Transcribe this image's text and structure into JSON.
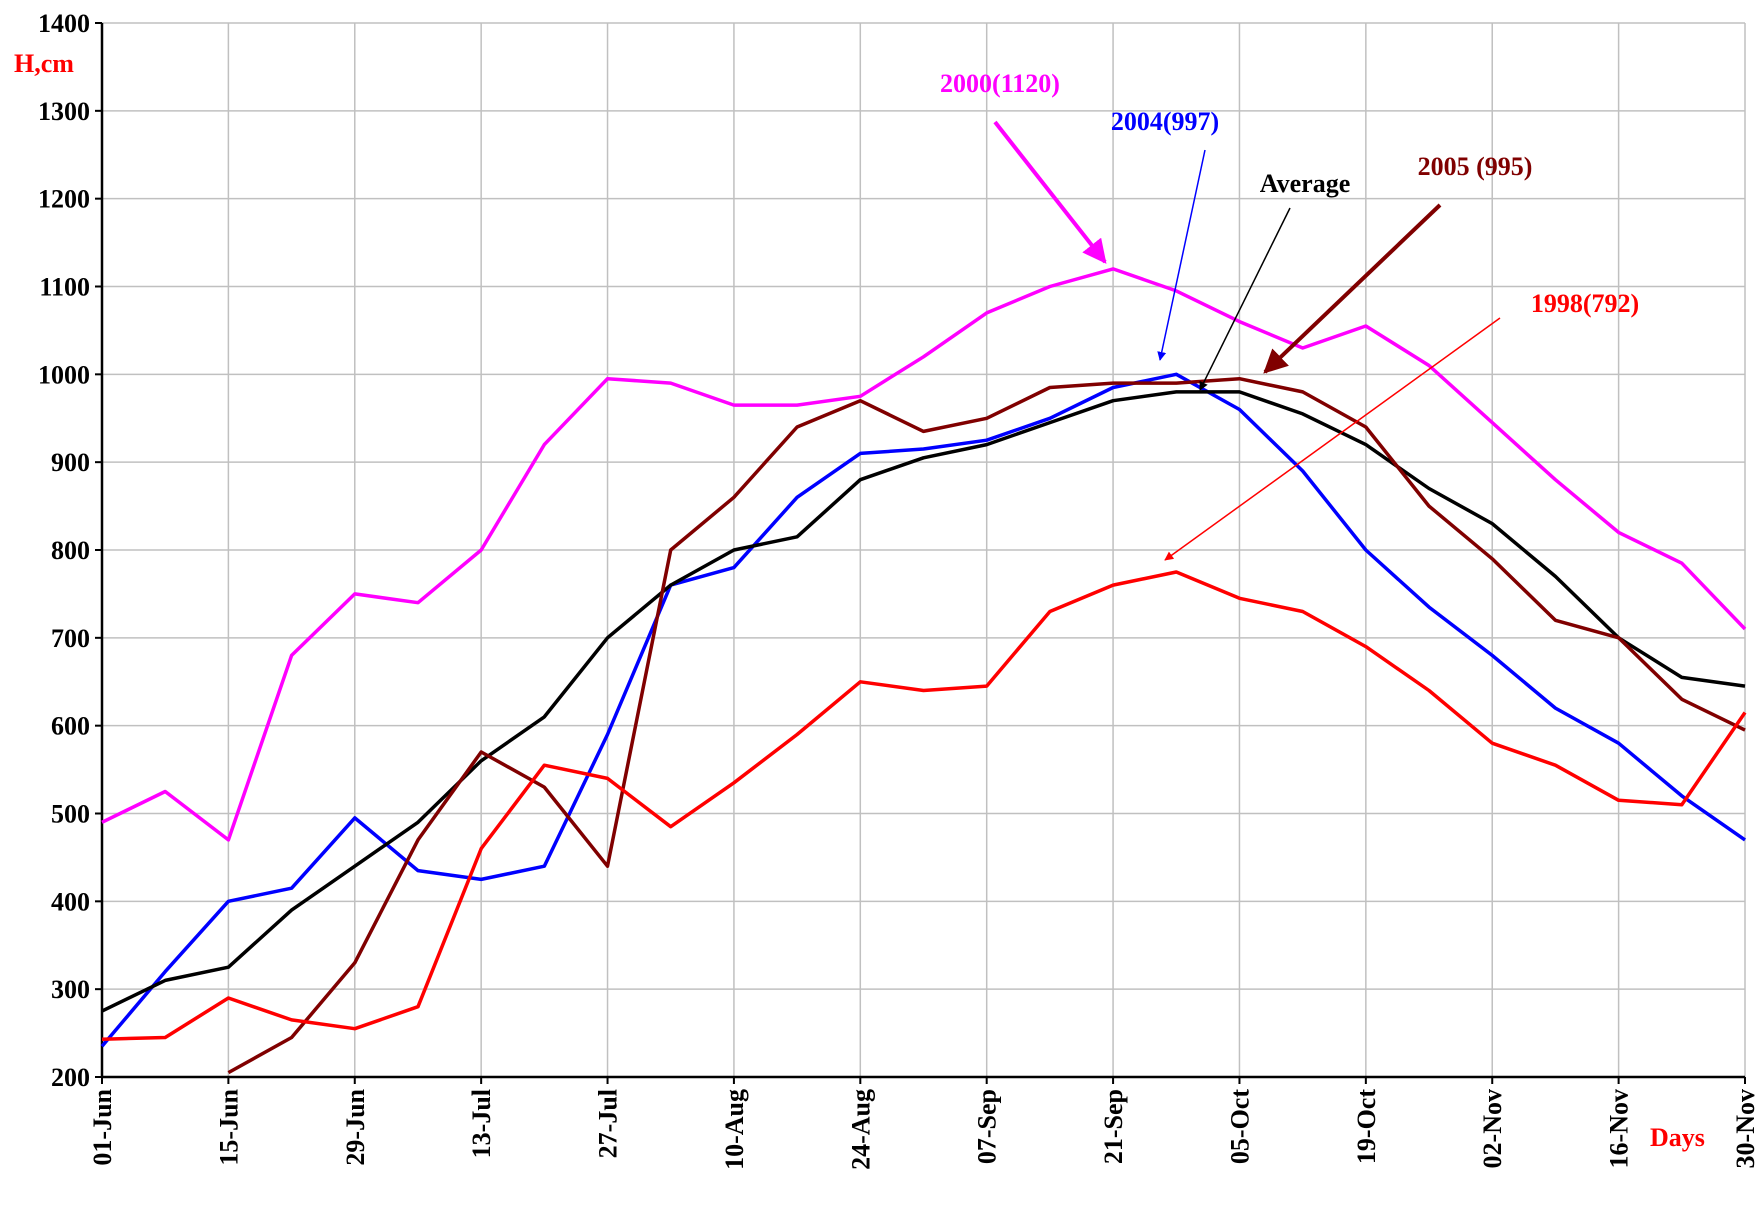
{
  "chart_data": {
    "type": "line",
    "y_label": "H,cm",
    "x_label": "Days",
    "x": [
      0,
      7,
      14,
      21,
      28,
      35,
      42,
      49,
      56,
      63,
      70,
      77,
      84,
      91,
      98,
      105,
      112,
      119,
      126,
      133,
      140,
      147,
      154,
      161,
      168,
      175,
      182
    ],
    "xlim": [
      0,
      182
    ],
    "xticks": [
      {
        "value": 0,
        "label": "01-Jun"
      },
      {
        "value": 14,
        "label": "15-Jun"
      },
      {
        "value": 28,
        "label": "29-Jun"
      },
      {
        "value": 42,
        "label": "13-Jul"
      },
      {
        "value": 56,
        "label": "27-Jul"
      },
      {
        "value": 70,
        "label": "10-Aug"
      },
      {
        "value": 84,
        "label": "24-Aug"
      },
      {
        "value": 98,
        "label": "07-Sep"
      },
      {
        "value": 112,
        "label": "21-Sep"
      },
      {
        "value": 126,
        "label": "05-Oct"
      },
      {
        "value": 140,
        "label": "19-Oct"
      },
      {
        "value": 154,
        "label": "02-Nov"
      },
      {
        "value": 168,
        "label": "16-Nov"
      },
      {
        "value": 182,
        "label": "30-Nov"
      }
    ],
    "ylim": [
      200,
      1400
    ],
    "yticks": [
      200,
      300,
      400,
      500,
      600,
      700,
      800,
      900,
      1000,
      1100,
      1200,
      1300,
      1400
    ],
    "grid": true,
    "series": [
      {
        "name": "2000(1120)",
        "color": "#ff00ff",
        "values": [
          490,
          525,
          470,
          680,
          750,
          740,
          800,
          920,
          995,
          990,
          965,
          965,
          975,
          1020,
          1070,
          1100,
          1120,
          1095,
          1060,
          1030,
          1055,
          1010,
          945,
          880,
          820,
          785,
          710
        ]
      },
      {
        "name": "2004(997)",
        "color": "#0000ff",
        "values": [
          235,
          320,
          400,
          415,
          495,
          435,
          425,
          440,
          590,
          760,
          780,
          860,
          910,
          915,
          925,
          950,
          985,
          1000,
          960,
          890,
          800,
          735,
          680,
          620,
          580,
          520,
          470
        ]
      },
      {
        "name": "Average",
        "color": "#000000",
        "values": [
          275,
          310,
          325,
          390,
          440,
          490,
          560,
          610,
          700,
          760,
          800,
          815,
          880,
          905,
          920,
          945,
          970,
          980,
          980,
          955,
          920,
          870,
          830,
          770,
          700,
          655,
          645
        ]
      },
      {
        "name": "2005 (995)",
        "color": "#800000",
        "values": [
          null,
          null,
          205,
          245,
          330,
          470,
          570,
          530,
          440,
          800,
          860,
          940,
          970,
          935,
          950,
          985,
          990,
          990,
          995,
          980,
          940,
          850,
          790,
          720,
          700,
          630,
          595
        ]
      },
      {
        "name": "1998(792)",
        "color": "#ff0000",
        "values": [
          243,
          245,
          290,
          265,
          255,
          280,
          460,
          555,
          540,
          485,
          535,
          590,
          650,
          640,
          645,
          730,
          760,
          775,
          745,
          730,
          690,
          640,
          580,
          555,
          515,
          510,
          615
        ]
      }
    ]
  }
}
